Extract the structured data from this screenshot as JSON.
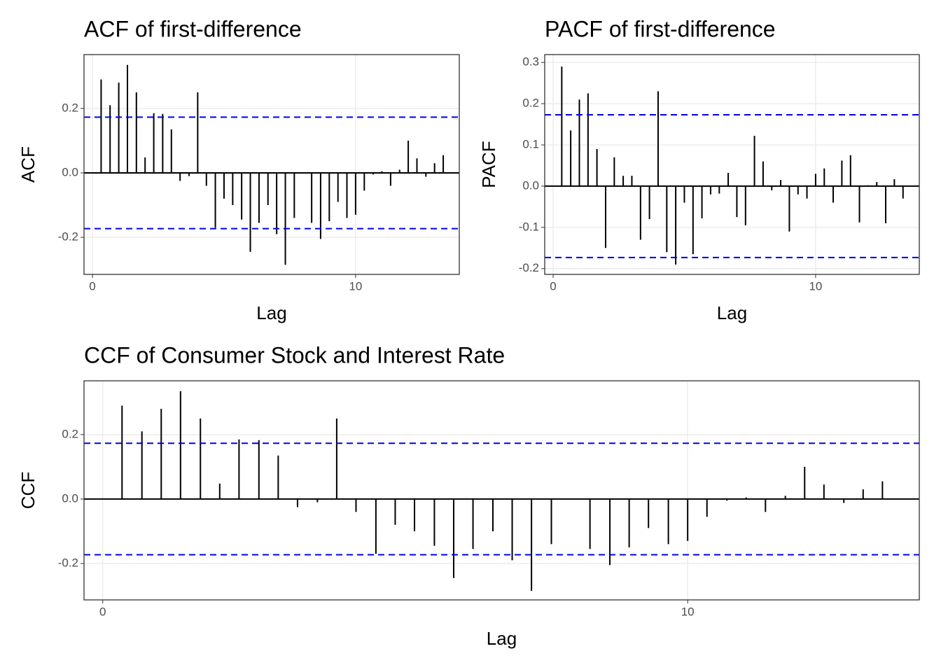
{
  "chart_data": [
    {
      "type": "stem",
      "title": "ACF of first-difference",
      "x_label": "Lag",
      "y_label": "ACF",
      "x": [
        0.33,
        0.67,
        1,
        1.33,
        1.67,
        2,
        2.33,
        2.67,
        3,
        3.33,
        3.67,
        4,
        4.33,
        4.67,
        5,
        5.33,
        5.67,
        6,
        6.33,
        6.67,
        7,
        7.33,
        7.67,
        8,
        8.33,
        8.67,
        9,
        9.33,
        9.67,
        10,
        10.33,
        10.67,
        11,
        11.33,
        11.67,
        12,
        12.33,
        12.67,
        13,
        13.33
      ],
      "values": [
        0.29,
        0.21,
        0.28,
        0.335,
        0.25,
        0.048,
        0.185,
        0.183,
        0.135,
        -0.025,
        -0.01,
        0.25,
        -0.04,
        -0.17,
        -0.08,
        -0.1,
        -0.145,
        -0.245,
        -0.155,
        -0.1,
        -0.19,
        -0.285,
        -0.14,
        0.002,
        -0.155,
        -0.205,
        -0.15,
        -0.09,
        -0.14,
        -0.13,
        -0.055,
        -0.005,
        0.005,
        -0.04,
        0.01,
        0.1,
        0.045,
        -0.012,
        0.03,
        0.055
      ],
      "color": "#000000",
      "ci_lines": [
        0.173,
        -0.173
      ],
      "ci_color": "#0000ee",
      "xlim": [
        -0.32,
        13.94
      ],
      "ylim": [
        -0.315,
        0.367
      ],
      "xticks": [
        0,
        10
      ],
      "yticks": [
        -0.2,
        {
          "value": 0,
          "label": "0.0"
        },
        0.2
      ],
      "grid": true
    },
    {
      "type": "stem",
      "title": "PACF of first-difference",
      "x_label": "Lag",
      "y_label": "PACF",
      "x": [
        0.33,
        0.67,
        1,
        1.33,
        1.67,
        2,
        2.33,
        2.67,
        3,
        3.33,
        3.67,
        4,
        4.33,
        4.67,
        5,
        5.33,
        5.67,
        6,
        6.33,
        6.67,
        7,
        7.33,
        7.67,
        8,
        8.33,
        8.67,
        9,
        9.33,
        9.67,
        10,
        10.33,
        10.67,
        11,
        11.33,
        11.67,
        12,
        12.33,
        12.67,
        13,
        13.33
      ],
      "values": [
        0.29,
        0.135,
        0.21,
        0.225,
        0.09,
        -0.15,
        0.07,
        0.025,
        0.025,
        -0.13,
        -0.08,
        0.23,
        -0.16,
        -0.19,
        -0.04,
        -0.165,
        -0.078,
        -0.02,
        -0.018,
        0.032,
        -0.075,
        -0.095,
        0.122,
        0.06,
        -0.01,
        0.015,
        -0.11,
        -0.02,
        -0.03,
        0.03,
        0.043,
        -0.04,
        0.062,
        0.075,
        -0.088,
        0.002,
        0.01,
        -0.09,
        0.017,
        -0.03
      ],
      "color": "#000000",
      "ci_lines": [
        0.173,
        -0.173
      ],
      "ci_color": "#0000ee",
      "xlim": [
        -0.32,
        13.95
      ],
      "ylim": [
        -0.214,
        0.319
      ],
      "xticks": [
        0,
        10
      ],
      "yticks": [
        -0.2,
        -0.1,
        {
          "value": 0,
          "label": "0.0"
        },
        0.1,
        0.2,
        0.3
      ],
      "grid": true
    },
    {
      "type": "stem",
      "title": "CCF of Consumer Stock and Interest Rate",
      "x_label": "Lag",
      "y_label": "CCF",
      "x": [
        0.33,
        0.67,
        1,
        1.33,
        1.67,
        2,
        2.33,
        2.67,
        3,
        3.33,
        3.67,
        4,
        4.33,
        4.67,
        5,
        5.33,
        5.67,
        6,
        6.33,
        6.67,
        7,
        7.33,
        7.67,
        8,
        8.33,
        8.67,
        9,
        9.33,
        9.67,
        10,
        10.33,
        10.67,
        11,
        11.33,
        11.67,
        12,
        12.33,
        12.67,
        13,
        13.33
      ],
      "values": [
        0.29,
        0.21,
        0.28,
        0.335,
        0.25,
        0.048,
        0.185,
        0.183,
        0.135,
        -0.025,
        -0.01,
        0.25,
        -0.04,
        -0.17,
        -0.08,
        -0.1,
        -0.145,
        -0.245,
        -0.155,
        -0.1,
        -0.19,
        -0.285,
        -0.14,
        0.002,
        -0.155,
        -0.205,
        -0.15,
        -0.09,
        -0.14,
        -0.13,
        -0.055,
        -0.005,
        0.005,
        -0.04,
        0.01,
        0.1,
        0.045,
        -0.012,
        0.03,
        0.055
      ],
      "color": "#000000",
      "ci_lines": [
        0.173,
        -0.173
      ],
      "ci_color": "#0000ee",
      "xlim": [
        -0.32,
        13.96
      ],
      "ylim": [
        -0.313,
        0.367
      ],
      "xticks": [
        0,
        10
      ],
      "yticks": [
        -0.2,
        {
          "value": 0,
          "label": "0.0"
        },
        0.2
      ],
      "grid": true
    }
  ]
}
